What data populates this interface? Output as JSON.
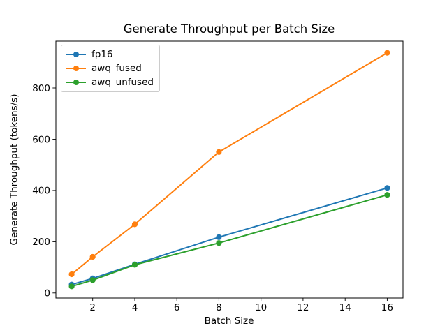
{
  "figure": {
    "background": "#ffffff"
  },
  "chart_data": {
    "type": "line",
    "title": "Generate Throughput per Batch Size",
    "xlabel": "Batch Size",
    "ylabel": "Generate Throughput (tokens/s)",
    "x": [
      1,
      2,
      4,
      8,
      16
    ],
    "series": [
      {
        "name": "fp16",
        "color": "#1f77b4",
        "values": [
          33,
          57,
          112,
          218,
          410
        ]
      },
      {
        "name": "awq_fused",
        "color": "#ff7f0e",
        "values": [
          73,
          141,
          268,
          550,
          937
        ]
      },
      {
        "name": "awq_unfused",
        "color": "#2ca02c",
        "values": [
          26,
          50,
          110,
          195,
          383
        ]
      }
    ],
    "xticks": [
      2,
      4,
      6,
      8,
      10,
      12,
      14,
      16
    ],
    "yticks": [
      0,
      200,
      400,
      600,
      800
    ],
    "xlim": [
      0.25,
      16.75
    ],
    "ylim": [
      -19.6,
      982.6
    ],
    "grid": false,
    "legend_position": "upper-left",
    "marker": "circle",
    "axis_color": "#000000",
    "text_color": "#000000",
    "legend_border_color": "#cccccc"
  }
}
